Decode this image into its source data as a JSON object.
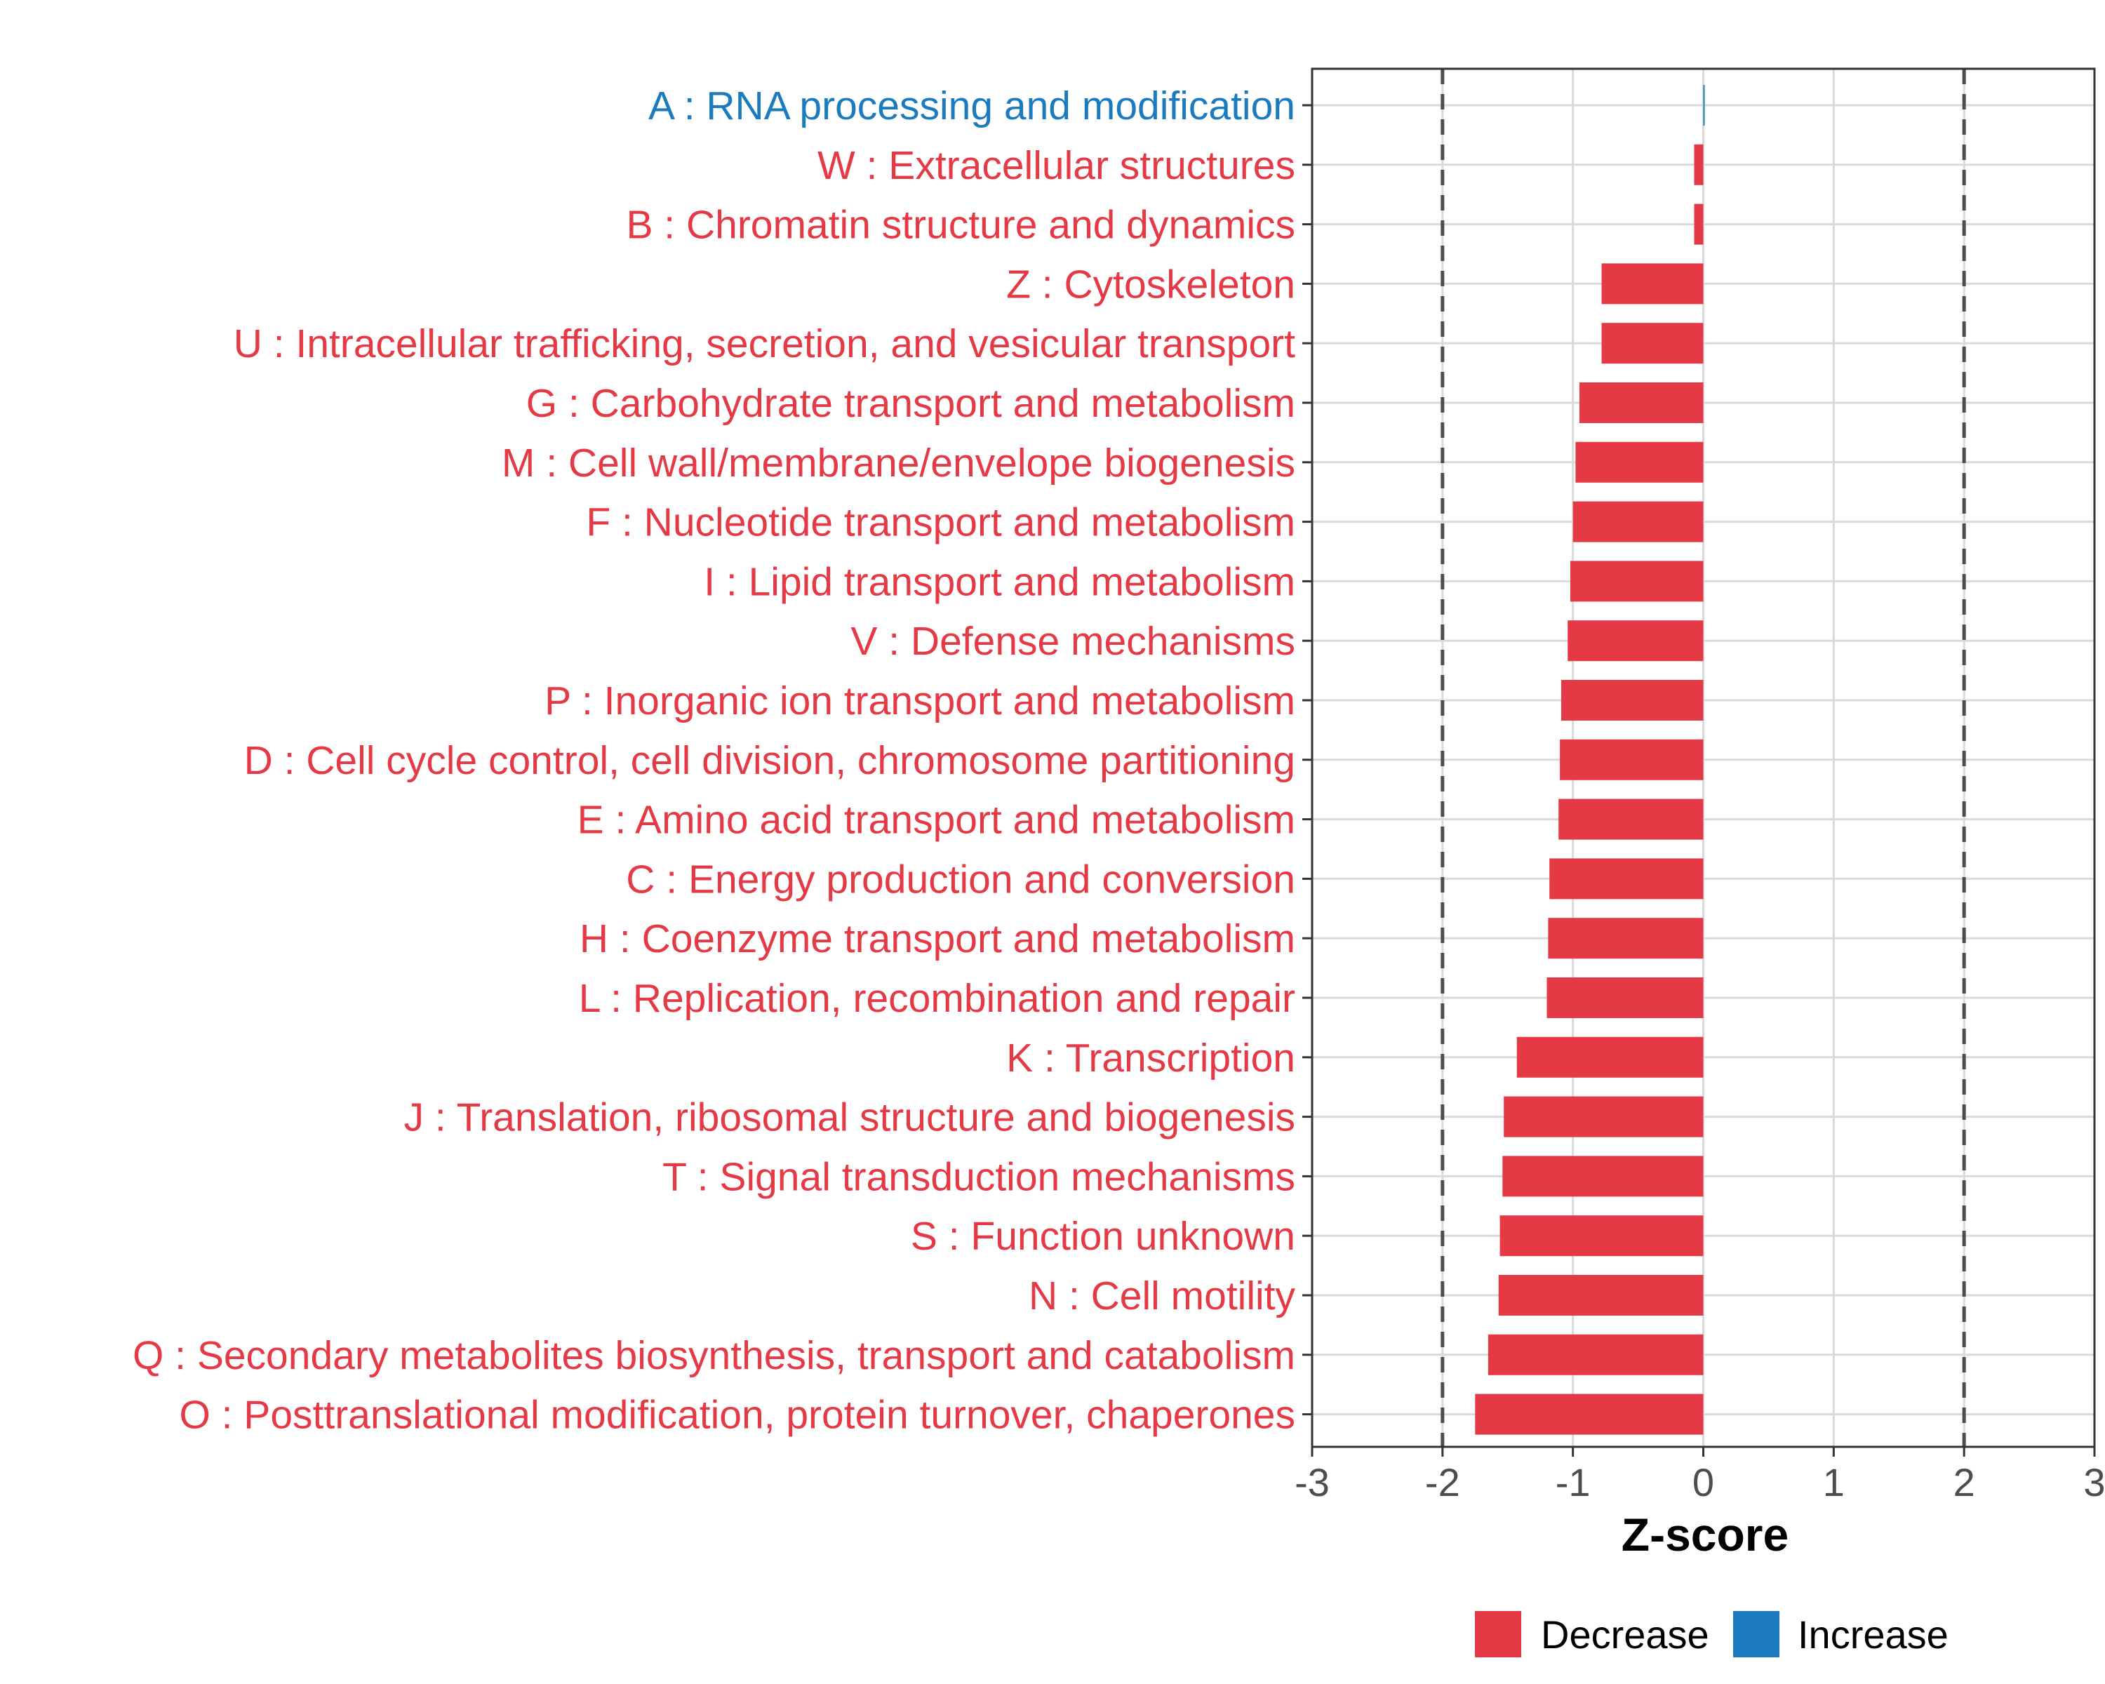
{
  "colors": {
    "decrease": "#E63946",
    "increase": "#1B7BBE",
    "grid": "#DADADA",
    "frame": "#333333",
    "threshold": "#4D4D4D"
  },
  "legend": {
    "decrease_label": "Decrease",
    "increase_label": "Increase"
  },
  "chart_data": {
    "type": "bar",
    "orientation": "horizontal",
    "title": "",
    "xlabel": "Z-score",
    "ylabel": "",
    "xlim": [
      -3,
      3
    ],
    "xticks": [
      "-3",
      "-2",
      "-1",
      "0",
      "1",
      "2",
      "3"
    ],
    "grid": true,
    "threshold_lines": [
      -2,
      2
    ],
    "legend_position": "bottom",
    "categories": [
      "A : RNA processing and modification",
      "W : Extracellular structures",
      "B : Chromatin structure and dynamics",
      "Z : Cytoskeleton",
      "U : Intracellular trafficking, secretion, and vesicular transport",
      "G : Carbohydrate transport and metabolism",
      "M : Cell wall/membrane/envelope biogenesis",
      "F : Nucleotide transport and metabolism",
      "I : Lipid transport and metabolism",
      "V : Defense mechanisms",
      "P : Inorganic ion transport and metabolism",
      "D : Cell cycle control, cell division, chromosome partitioning",
      "E : Amino acid transport and metabolism",
      "C : Energy production and conversion",
      "H : Coenzyme transport and metabolism",
      "L : Replication, recombination and repair",
      "K : Transcription",
      "J : Translation, ribosomal structure and biogenesis",
      "T : Signal transduction mechanisms",
      "S : Function unknown",
      "N : Cell motility",
      "Q : Secondary metabolites biosynthesis, transport and catabolism",
      "O : Posttranslational modification, protein turnover, chaperones"
    ],
    "values": [
      0.01,
      -0.07,
      -0.07,
      -0.78,
      -0.78,
      -0.95,
      -0.98,
      -1.0,
      -1.02,
      -1.04,
      -1.09,
      -1.1,
      -1.11,
      -1.18,
      -1.19,
      -1.2,
      -1.43,
      -1.53,
      -1.54,
      -1.56,
      -1.57,
      -1.65,
      -1.75
    ],
    "direction": [
      "Increase",
      "Decrease",
      "Decrease",
      "Decrease",
      "Decrease",
      "Decrease",
      "Decrease",
      "Decrease",
      "Decrease",
      "Decrease",
      "Decrease",
      "Decrease",
      "Decrease",
      "Decrease",
      "Decrease",
      "Decrease",
      "Decrease",
      "Decrease",
      "Decrease",
      "Decrease",
      "Decrease",
      "Decrease",
      "Decrease"
    ]
  }
}
